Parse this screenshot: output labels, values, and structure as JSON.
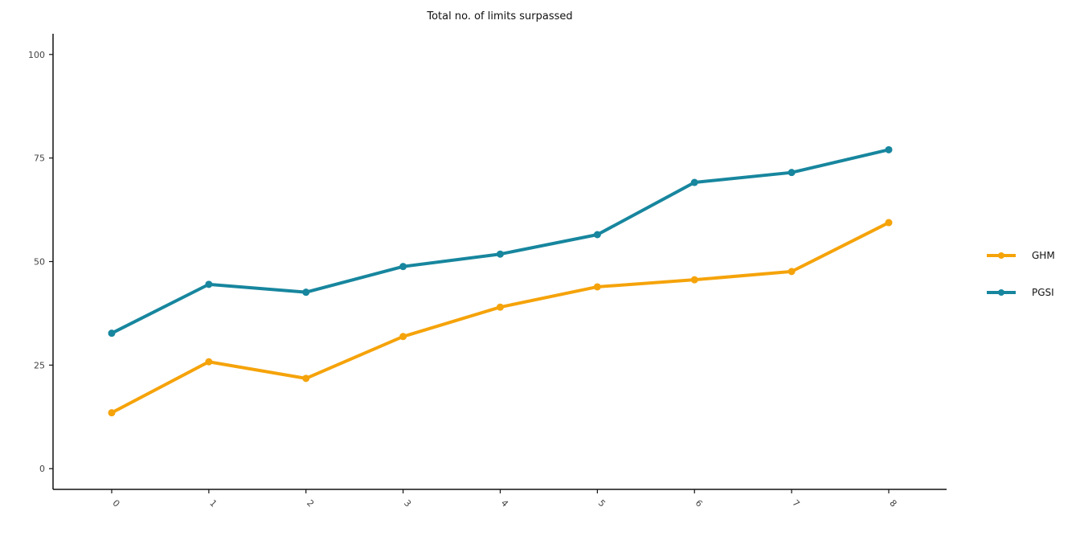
{
  "chart_data": {
    "type": "line",
    "title": "Total no. of limits surpassed",
    "xlabel": "",
    "ylabel": "",
    "x": [
      "0",
      "1",
      "2",
      "3",
      "4",
      "5",
      "6",
      "7",
      "8"
    ],
    "ylim": [
      -5,
      105
    ],
    "yticks": [
      0,
      25,
      50,
      75,
      100
    ],
    "grid": false,
    "legend_position": "right",
    "series": [
      {
        "name": "GHM",
        "color": "#F5A30A",
        "values": [
          13.5,
          25.8,
          21.8,
          31.9,
          39.0,
          43.9,
          45.6,
          47.6,
          59.4
        ]
      },
      {
        "name": "PGSI",
        "color": "#17869E",
        "values": [
          32.7,
          44.5,
          42.6,
          48.8,
          51.8,
          56.5,
          69.1,
          71.5,
          77.0
        ]
      }
    ]
  }
}
